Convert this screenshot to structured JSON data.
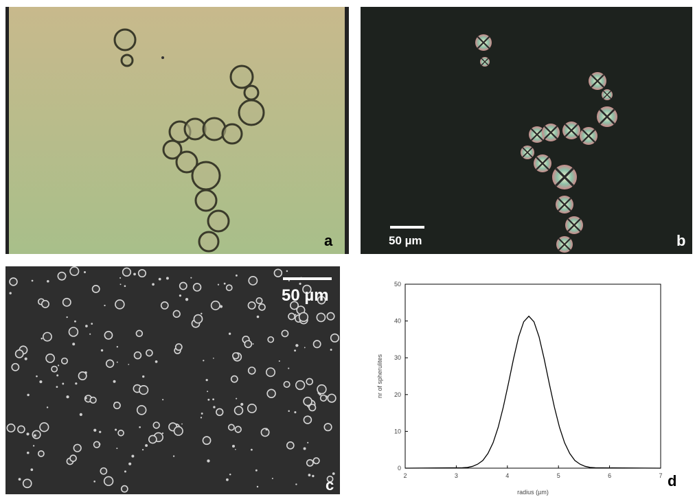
{
  "panels": {
    "a": {
      "label": "a"
    },
    "b": {
      "label": "b",
      "scale_bar": "50 µm"
    },
    "c": {
      "label": "c",
      "scale_bar": "50 µm"
    },
    "d": {
      "label": "d"
    }
  },
  "chart_data": {
    "type": "line",
    "xlabel": "radius (µm)",
    "ylabel": "nr of spherulites",
    "color": "#000000",
    "x": [
      2,
      3.12,
      3.22,
      3.32,
      3.42,
      3.52,
      3.62,
      3.72,
      3.82,
      3.92,
      4.02,
      4.12,
      4.22,
      4.32,
      4.42,
      4.52,
      4.62,
      4.72,
      4.82,
      4.92,
      5.02,
      5.12,
      5.22,
      5.32,
      5.42,
      5.52,
      5.62,
      5.72,
      7
    ],
    "values": [
      0,
      0.1,
      0.2,
      0.5,
      1.1,
      2.1,
      4.0,
      6.9,
      11.1,
      16.6,
      23.0,
      29.7,
      35.7,
      39.8,
      41.3,
      39.8,
      35.7,
      29.7,
      23.0,
      16.6,
      11.1,
      6.9,
      4.0,
      2.1,
      1.1,
      0.5,
      0.2,
      0.1,
      0
    ],
    "xlim": [
      2,
      7
    ],
    "xticks": [
      2,
      3,
      4,
      5,
      6,
      7
    ],
    "ylim": [
      0,
      50
    ],
    "yticks": [
      0,
      10,
      20,
      30,
      40,
      50
    ]
  }
}
